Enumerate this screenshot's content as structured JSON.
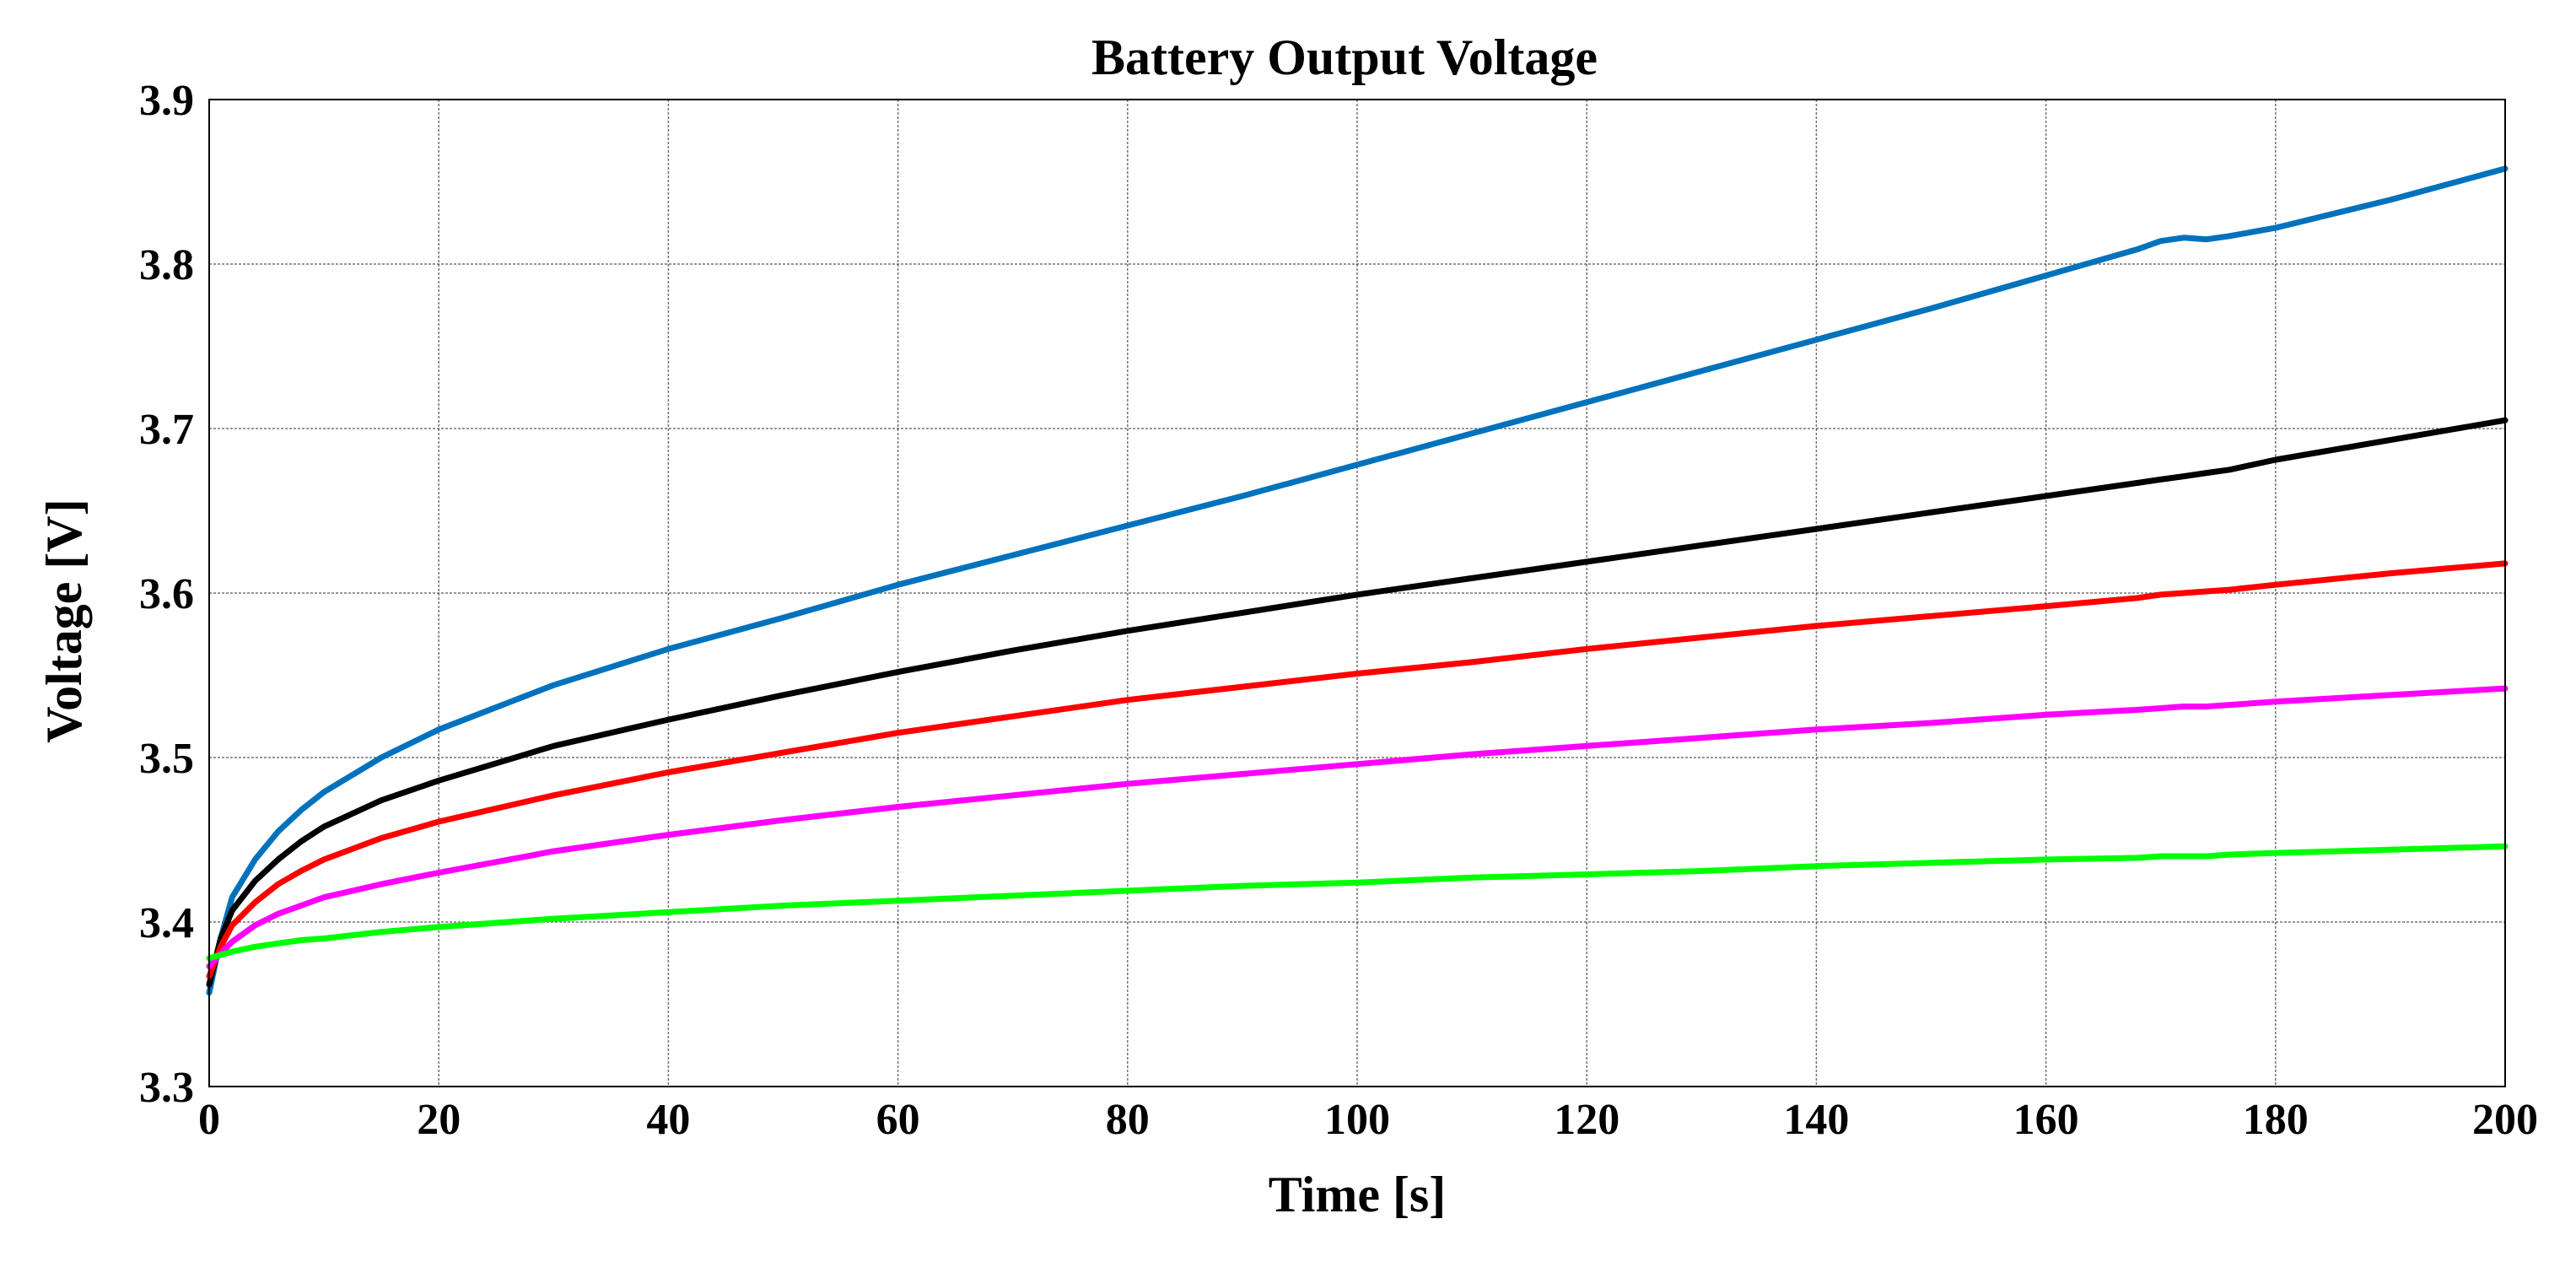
{
  "chart_data": {
    "type": "line",
    "title": "Battery Output Voltage",
    "xlabel": "Time [s]",
    "ylabel": "Voltage [V]",
    "xlim": [
      0,
      200
    ],
    "ylim": [
      3.3,
      3.9
    ],
    "grid": true,
    "xticks": [
      0,
      20,
      40,
      60,
      80,
      100,
      120,
      140,
      160,
      180,
      200
    ],
    "yticks": [
      3.3,
      3.4,
      3.5,
      3.6,
      3.7,
      3.8,
      3.9
    ],
    "xtick_labels": [
      "0",
      "20",
      "40",
      "60",
      "80",
      "100",
      "120",
      "140",
      "160",
      "180",
      "200"
    ],
    "ytick_labels": [
      "3.3",
      "3.4",
      "3.5",
      "3.6",
      "3.7",
      "3.8",
      "3.9"
    ],
    "x": [
      0,
      1,
      2,
      4,
      6,
      8,
      10,
      15,
      20,
      30,
      40,
      50,
      60,
      70,
      80,
      90,
      100,
      110,
      120,
      130,
      140,
      150,
      160,
      168,
      170,
      172,
      174,
      176,
      180,
      190,
      200
    ],
    "series": [
      {
        "name": "blue",
        "color": "#0072BD",
        "values": [
          3.357,
          3.39,
          3.415,
          3.438,
          3.455,
          3.468,
          3.479,
          3.5,
          3.517,
          3.544,
          3.566,
          3.585,
          3.605,
          3.623,
          3.641,
          3.659,
          3.678,
          3.697,
          3.716,
          3.735,
          3.754,
          3.773,
          3.793,
          3.809,
          3.814,
          3.816,
          3.815,
          3.817,
          3.822,
          3.839,
          3.858
        ]
      },
      {
        "name": "black",
        "color": "#000000",
        "values": [
          3.362,
          3.39,
          3.407,
          3.425,
          3.438,
          3.449,
          3.458,
          3.474,
          3.486,
          3.507,
          3.523,
          3.538,
          3.552,
          3.565,
          3.577,
          3.588,
          3.599,
          3.609,
          3.619,
          3.629,
          3.639,
          3.649,
          3.659,
          3.667,
          3.669,
          3.671,
          3.673,
          3.675,
          3.681,
          3.693,
          3.705
        ]
      },
      {
        "name": "red",
        "color": "#FF0000",
        "values": [
          3.367,
          3.385,
          3.398,
          3.412,
          3.423,
          3.431,
          3.438,
          3.451,
          3.461,
          3.477,
          3.491,
          3.503,
          3.515,
          3.525,
          3.535,
          3.543,
          3.551,
          3.558,
          3.566,
          3.573,
          3.58,
          3.586,
          3.592,
          3.597,
          3.599,
          3.6,
          3.601,
          3.602,
          3.605,
          3.612,
          3.618
        ]
      },
      {
        "name": "magenta",
        "color": "#FF00FF",
        "values": [
          3.373,
          3.381,
          3.388,
          3.398,
          3.405,
          3.41,
          3.415,
          3.423,
          3.43,
          3.443,
          3.453,
          3.462,
          3.47,
          3.477,
          3.484,
          3.49,
          3.496,
          3.502,
          3.507,
          3.512,
          3.517,
          3.521,
          3.526,
          3.529,
          3.53,
          3.531,
          3.531,
          3.532,
          3.534,
          3.538,
          3.542
        ]
      },
      {
        "name": "green",
        "color": "#00FF00",
        "values": [
          3.378,
          3.38,
          3.382,
          3.385,
          3.387,
          3.389,
          3.39,
          3.394,
          3.397,
          3.402,
          3.406,
          3.41,
          3.413,
          3.416,
          3.419,
          3.422,
          3.424,
          3.427,
          3.429,
          3.431,
          3.434,
          3.436,
          3.438,
          3.439,
          3.44,
          3.44,
          3.44,
          3.441,
          3.442,
          3.444,
          3.446
        ]
      }
    ]
  }
}
